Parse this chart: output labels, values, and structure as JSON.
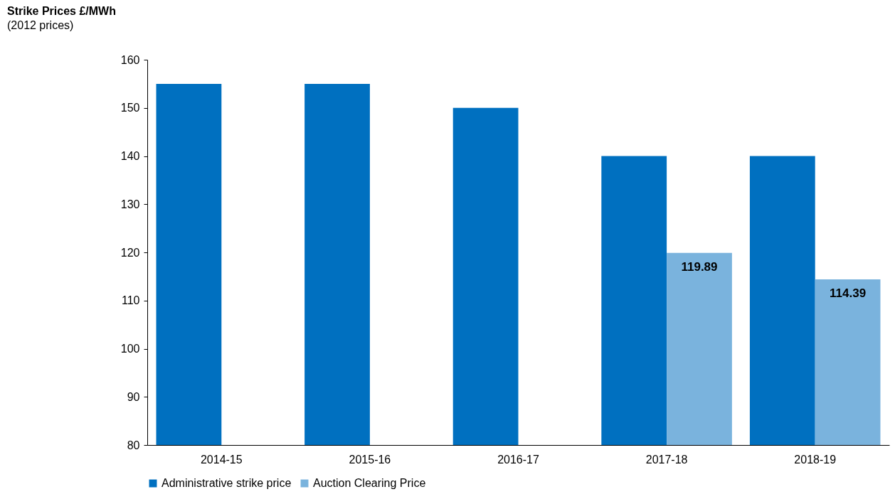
{
  "chart_data": {
    "type": "bar",
    "ylabel": "Strike Prices £/MWh",
    "annotations": [
      "(2012 prices)"
    ],
    "categories": [
      "2014-15",
      "2015-16",
      "2016-17",
      "2017-18",
      "2018-19"
    ],
    "series": [
      {
        "name": "Administrative strike price",
        "color": "#0070c0",
        "values": [
          155,
          155,
          150,
          140,
          140
        ]
      },
      {
        "name": "Auction Clearing Price",
        "color": "#7ab3dd",
        "values": [
          null,
          null,
          null,
          119.89,
          114.39
        ],
        "value_labels": [
          null,
          null,
          null,
          "119.89",
          "114.39"
        ]
      }
    ],
    "ylim": [
      80,
      160
    ],
    "yticks": [
      80,
      90,
      100,
      110,
      120,
      130,
      140,
      150,
      160
    ],
    "grid": false,
    "legend": "bottom"
  }
}
